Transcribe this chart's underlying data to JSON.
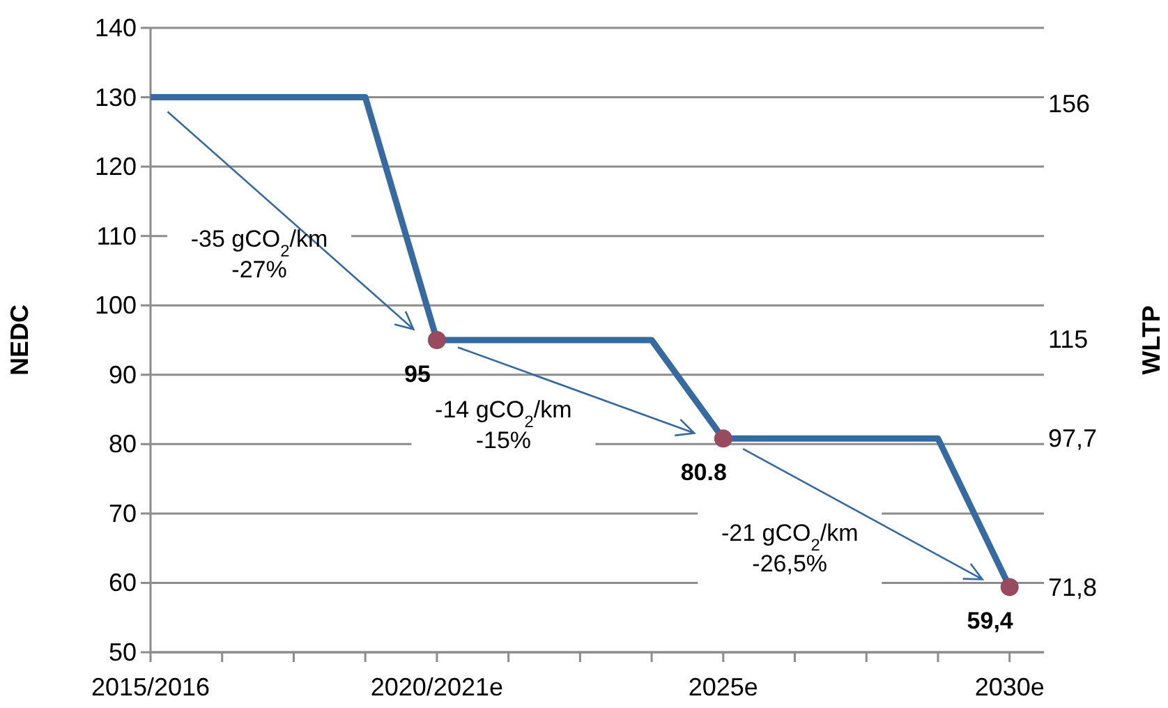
{
  "chart_data": {
    "type": "line",
    "xlabel": null,
    "ylabel": "NEDC",
    "y2label": "WLTP",
    "x": [
      2015,
      2018.75,
      2020,
      2023.75,
      2025,
      2028.75,
      2030
    ],
    "xlim": [
      2015,
      2030.6
    ],
    "xticks": [
      {
        "value": 2015,
        "label": "2015/2016"
      },
      {
        "value": 2016.25,
        "label": null
      },
      {
        "value": 2017.5,
        "label": null
      },
      {
        "value": 2018.75,
        "label": null
      },
      {
        "value": 2020,
        "label": "2020/2021e"
      },
      {
        "value": 2021.25,
        "label": null
      },
      {
        "value": 2022.5,
        "label": null
      },
      {
        "value": 2023.75,
        "label": null
      },
      {
        "value": 2025,
        "label": "2025e"
      },
      {
        "value": 2026.25,
        "label": null
      },
      {
        "value": 2027.5,
        "label": null
      },
      {
        "value": 2028.75,
        "label": null
      },
      {
        "value": 2030,
        "label": "2030e"
      }
    ],
    "ylim": [
      50,
      140
    ],
    "yticks": [
      50,
      60,
      70,
      80,
      90,
      100,
      110,
      120,
      130,
      140
    ],
    "y2lim": [
      60.45,
      169.26
    ],
    "y2ticks": [
      156,
      115,
      {
        "value": 97.7,
        "label": "97,7"
      },
      {
        "value": 71.8,
        "label": "71,8"
      }
    ],
    "grid": "y",
    "line_style": "solid",
    "series": [
      {
        "color": "#356ba0",
        "marker": "none",
        "values": [
          130,
          130,
          95,
          95,
          80.8,
          80.8,
          59.4
        ]
      },
      {
        "type": "scatter",
        "color": "#984a5e",
        "marker": "circle",
        "x": [
          2020,
          2025,
          2030
        ],
        "values": [
          95,
          80.8,
          59.4
        ],
        "value_labels": [
          "95",
          "80.8",
          "59,4"
        ]
      }
    ],
    "annotations": [
      "-35 gCO$_{2}$/km\n-27%",
      "-14 gCO$_{2}$/km\n-15%",
      "-21 gCO$_{2}$/km\n-26,5%"
    ]
  }
}
